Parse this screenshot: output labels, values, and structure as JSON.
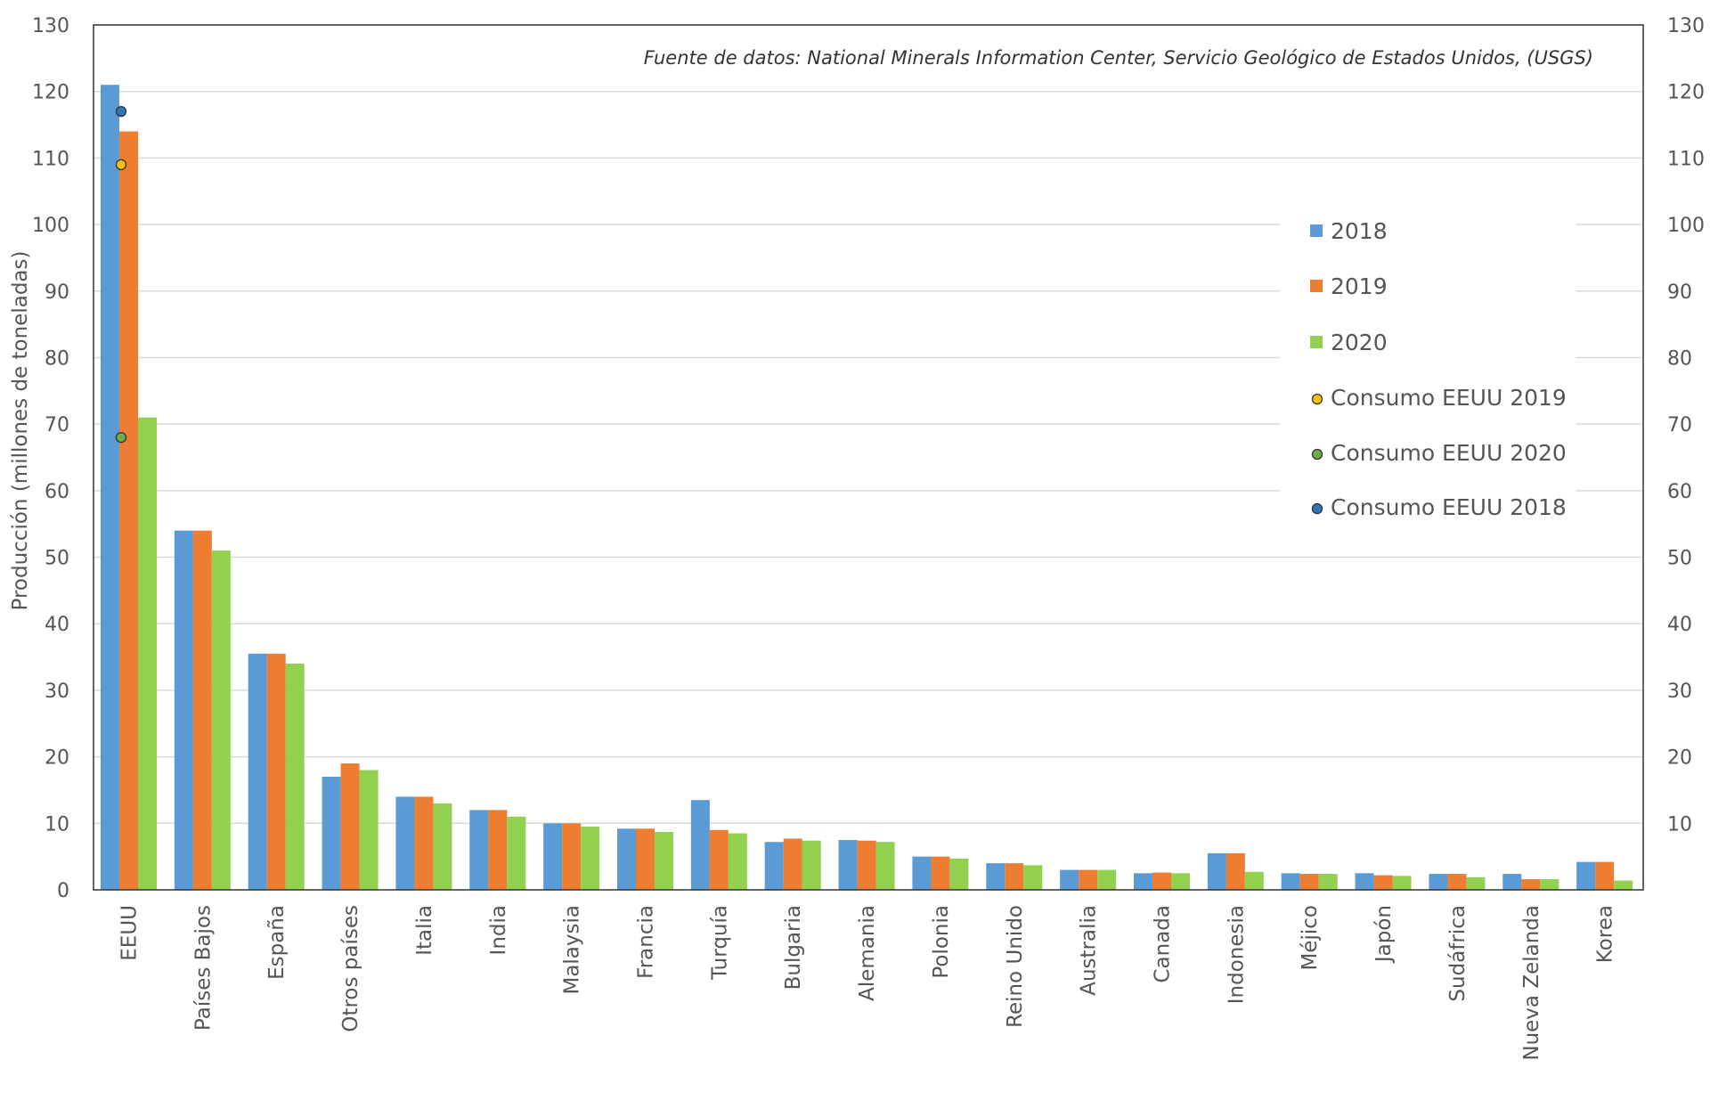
{
  "chart_data": {
    "type": "bar",
    "source_note": "Fuente de datos: National Minerals Information Center, Servicio Geológico de Estados Unidos, (USGS)",
    "ylabel": "Producción (millones de toneladas)",
    "ylim": [
      0,
      130
    ],
    "left_ticks": [
      "0",
      "10",
      "20",
      "30",
      "40",
      "50",
      "60",
      "70",
      "80",
      "90",
      "100",
      "110",
      "120",
      "130"
    ],
    "right_ticks": [
      "10",
      "20",
      "30",
      "40",
      "50",
      "60",
      "70",
      "80",
      "90",
      "100",
      "110",
      "120",
      "130"
    ],
    "grid": true,
    "legend_position": "right",
    "categories": [
      "EEUU",
      "Países Bajos",
      "España",
      "Otros países",
      "Italia",
      "India",
      "Malaysia",
      "Francia",
      "Turquía",
      "Bulgaria",
      "Alemania",
      "Polonia",
      "Reino Unido",
      "Australia",
      "Canada",
      "Indonesia",
      "Méjico",
      "Japón",
      "Sudáfrica",
      "Nueva Zelanda",
      "Korea"
    ],
    "series": [
      {
        "name": "2018",
        "color": "#5b9bd5",
        "values": [
          121,
          54,
          35.5,
          17,
          14,
          12,
          10,
          9.2,
          13.5,
          7.2,
          7.5,
          5,
          4,
          3,
          2.5,
          5.5,
          2.5,
          2.5,
          2.4,
          2.4,
          4.2
        ]
      },
      {
        "name": "2019",
        "color": "#ed7d31",
        "values": [
          114,
          54,
          35.5,
          19,
          14,
          12,
          10,
          9.2,
          9,
          7.7,
          7.4,
          5,
          4,
          3,
          2.6,
          5.5,
          2.4,
          2.2,
          2.4,
          1.6,
          4.2
        ]
      },
      {
        "name": "2020",
        "color": "#92d050",
        "values": [
          71,
          51,
          34,
          18,
          13,
          11,
          9.5,
          8.7,
          8.5,
          7.4,
          7.2,
          4.7,
          3.7,
          3,
          2.5,
          2.7,
          2.4,
          2.1,
          1.9,
          1.6,
          1.4
        ]
      }
    ],
    "markers": [
      {
        "name": "Consumo EEUU 2019",
        "color": "#ffc000",
        "category": "EEUU",
        "value": 109
      },
      {
        "name": "Consumo EEUU 2020",
        "color": "#70ad47",
        "category": "EEUU",
        "value": 68
      },
      {
        "name": "Consumo EEUU 2018",
        "color": "#2e75b6",
        "category": "EEUU",
        "value": 117
      }
    ],
    "legend": [
      {
        "label": "2018",
        "kind": "square",
        "color": "#5b9bd5"
      },
      {
        "label": "2019",
        "kind": "square",
        "color": "#ed7d31"
      },
      {
        "label": "2020",
        "kind": "square",
        "color": "#92d050"
      },
      {
        "label": "Consumo EEUU 2019",
        "kind": "dot",
        "color": "#ffc000"
      },
      {
        "label": "Consumo EEUU 2020",
        "kind": "dot",
        "color": "#70ad47"
      },
      {
        "label": "Consumo EEUU 2018",
        "kind": "dot",
        "color": "#2e75b6"
      }
    ]
  }
}
